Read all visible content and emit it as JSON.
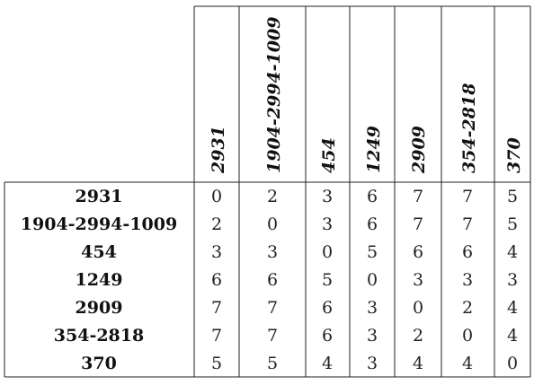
{
  "table": {
    "column_headers": [
      "2931",
      "1904-2994-1009",
      "454",
      "1249",
      "2909",
      "354-2818",
      "370"
    ],
    "row_headers": [
      "2931",
      "1904-2994-1009",
      "454",
      "1249",
      "2909",
      "354-2818",
      "370"
    ],
    "values": [
      [
        0,
        2,
        3,
        6,
        7,
        7,
        5
      ],
      [
        2,
        0,
        3,
        6,
        7,
        7,
        5
      ],
      [
        3,
        3,
        0,
        5,
        6,
        6,
        4
      ],
      [
        6,
        6,
        5,
        0,
        3,
        3,
        3
      ],
      [
        7,
        7,
        6,
        3,
        0,
        2,
        4
      ],
      [
        7,
        7,
        6,
        3,
        2,
        0,
        4
      ],
      [
        5,
        5,
        4,
        3,
        4,
        4,
        0
      ]
    ]
  }
}
